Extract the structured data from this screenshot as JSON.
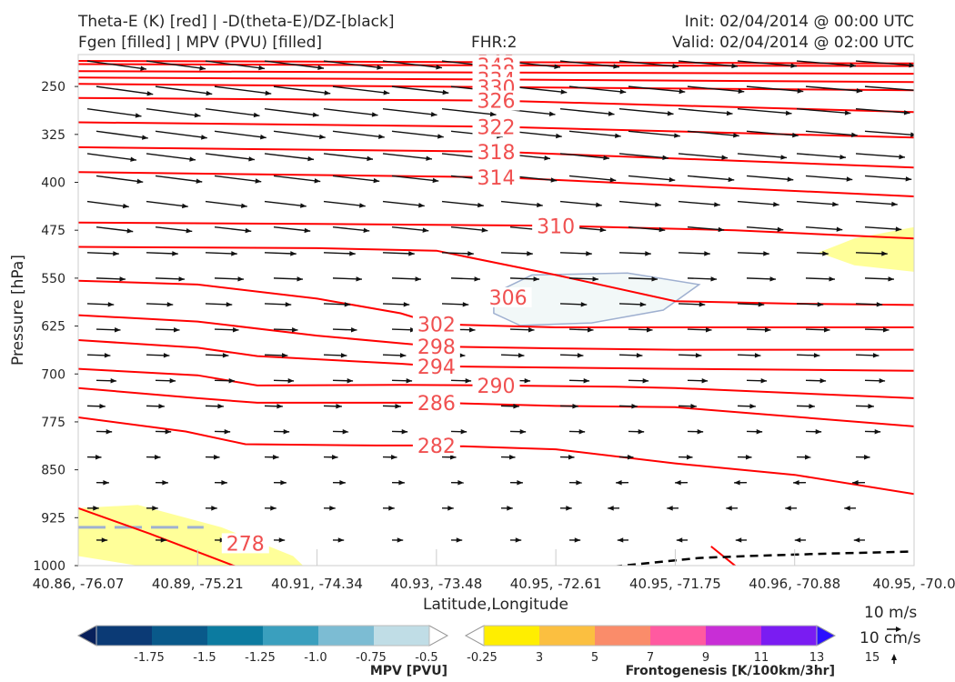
{
  "header": {
    "title_line1": "Theta-E (K) [red] | -D(theta-E)/DZ-[black]",
    "title_line2": "Fgen [filled] | MPV (PVU) [filled]",
    "fhr": "FHR:2",
    "init": "Init: 02/04/2014 @ 00:00 UTC",
    "valid": "Valid: 02/04/2014 @ 02:00 UTC"
  },
  "vector_key": {
    "label_ms": "10 m/s",
    "label_cms": "10 cm/s"
  },
  "colors": {
    "theta_e": "#ff0000",
    "theta_e_label": "#f05050",
    "wind_arrows": "#111111",
    "mpv_contour": "#9fb0d0",
    "fgen_fill": "#ffff99",
    "mpv_fill": "#f2f8f8"
  },
  "chart_data": {
    "type": "cross-section",
    "ylabel": "Pressure [hPa]",
    "xlabel": "Latitude,Longitude",
    "y_ticks": [
      "250",
      "325",
      "400",
      "475",
      "550",
      "625",
      "700",
      "775",
      "850",
      "925",
      "1000"
    ],
    "y_tick_values": [
      250,
      325,
      400,
      475,
      550,
      625,
      700,
      775,
      850,
      925,
      1000
    ],
    "ylim": [
      1000,
      200
    ],
    "x_ticks": [
      "40.86, -76.07",
      "40.89, -75.21",
      "40.91, -74.34",
      "40.93, -73.48",
      "40.95, -72.61",
      "40.95, -71.75",
      "40.96, -70.88",
      "40.95, -70.0"
    ],
    "x_tick_values": [
      0,
      1,
      2,
      3,
      4,
      5,
      6,
      7
    ],
    "xlim": [
      0,
      7
    ],
    "theta_e_contours": [
      {
        "label": "348",
        "points": [
          [
            0,
            210
          ],
          [
            3.5,
            212
          ],
          [
            7,
            214
          ]
        ],
        "label_at": [
          3.5,
          212
        ]
      },
      {
        "label": "342",
        "points": [
          [
            0,
            215
          ],
          [
            3.5,
            217
          ],
          [
            7,
            218
          ]
        ],
        "label_at": [
          3.5,
          217
        ]
      },
      {
        "label": "338",
        "points": [
          [
            0,
            226
          ],
          [
            3.5,
            228
          ],
          [
            7,
            230
          ]
        ],
        "label_at": [
          3.5,
          228
        ]
      },
      {
        "label": "334",
        "points": [
          [
            0,
            236
          ],
          [
            3.5,
            239
          ],
          [
            7,
            243
          ]
        ],
        "label_at": [
          3.5,
          239
        ]
      },
      {
        "label": "330",
        "points": [
          [
            0,
            246
          ],
          [
            3.5,
            251
          ],
          [
            7,
            256
          ]
        ],
        "label_at": [
          3.5,
          251
        ]
      },
      {
        "label": "326",
        "points": [
          [
            0,
            268
          ],
          [
            3.5,
            272
          ],
          [
            7,
            290
          ]
        ],
        "label_at": [
          3.5,
          272
        ]
      },
      {
        "label": "322",
        "points": [
          [
            0,
            306
          ],
          [
            3.5,
            313
          ],
          [
            7,
            330
          ]
        ],
        "label_at": [
          3.5,
          313
        ]
      },
      {
        "label": "318",
        "points": [
          [
            0,
            345
          ],
          [
            3.5,
            352
          ],
          [
            7,
            377
          ]
        ],
        "label_at": [
          3.5,
          352
        ]
      },
      {
        "label": "314",
        "points": [
          [
            0,
            384
          ],
          [
            3.5,
            392
          ],
          [
            7,
            422
          ]
        ],
        "label_at": [
          3.5,
          392
        ]
      },
      {
        "label": "310",
        "points": [
          [
            0,
            463
          ],
          [
            2,
            465
          ],
          [
            4,
            468
          ],
          [
            5.5,
            475
          ],
          [
            7,
            488
          ]
        ],
        "label_at": [
          4,
          468
        ]
      },
      {
        "label": "306",
        "points": [
          [
            0,
            501
          ],
          [
            2,
            503
          ],
          [
            3,
            507
          ],
          [
            4,
            545
          ],
          [
            5,
            586
          ],
          [
            6,
            590
          ],
          [
            7,
            592
          ]
        ],
        "label_at": [
          3.6,
          580
        ]
      },
      {
        "label": "302",
        "points": [
          [
            0,
            554
          ],
          [
            1,
            560
          ],
          [
            2,
            582
          ],
          [
            2.7,
            605
          ],
          [
            3,
            622
          ],
          [
            4,
            627
          ],
          [
            5,
            627
          ],
          [
            7,
            627
          ]
        ],
        "label_at": [
          3,
          622
        ]
      },
      {
        "label": "298",
        "points": [
          [
            0,
            608
          ],
          [
            1,
            618
          ],
          [
            2,
            640
          ],
          [
            2.7,
            652
          ],
          [
            3,
            657
          ],
          [
            4,
            660
          ],
          [
            5,
            662
          ],
          [
            7,
            662
          ]
        ],
        "label_at": [
          3,
          657
        ]
      },
      {
        "label": "294",
        "points": [
          [
            0,
            647
          ],
          [
            1,
            659
          ],
          [
            1.5,
            672
          ],
          [
            2.7,
            684
          ],
          [
            3,
            688
          ],
          [
            4,
            690
          ],
          [
            5,
            692
          ],
          [
            7,
            695
          ]
        ],
        "label_at": [
          3,
          688
        ]
      },
      {
        "label": "290",
        "points": [
          [
            0,
            692
          ],
          [
            1,
            702
          ],
          [
            1.5,
            718
          ],
          [
            2.7,
            717
          ],
          [
            3.5,
            718
          ],
          [
            4.5,
            720
          ],
          [
            5,
            722
          ],
          [
            7,
            738
          ]
        ],
        "label_at": [
          3.5,
          718
        ]
      },
      {
        "label": "286",
        "points": [
          [
            0,
            722
          ],
          [
            1,
            738
          ],
          [
            1.5,
            745
          ],
          [
            2.7,
            745
          ],
          [
            3,
            745
          ],
          [
            4,
            750
          ],
          [
            5,
            752
          ],
          [
            7,
            782
          ]
        ],
        "label_at": [
          3,
          745
        ]
      },
      {
        "label": "282",
        "points": [
          [
            0,
            768
          ],
          [
            0.9,
            790
          ],
          [
            1.4,
            810
          ],
          [
            2.5,
            812
          ],
          [
            3,
            812
          ],
          [
            4,
            818
          ],
          [
            5,
            840
          ],
          [
            6,
            858
          ],
          [
            7,
            888
          ]
        ],
        "label_at": [
          3,
          812
        ]
      },
      {
        "label": "278",
        "points": [
          [
            0,
            910
          ],
          [
            0.6,
            950
          ],
          [
            1.3,
            1000
          ],
          [
            2.3,
            1048
          ]
        ],
        "label_at": [
          1.4,
          965
        ]
      },
      {
        "label": "",
        "points": [
          [
            5.3,
            970
          ],
          [
            5.5,
            1000
          ],
          [
            5.4,
            1030
          ]
        ],
        "label_at": null
      }
    ],
    "dtheta_dz_contour": {
      "style": "dashed",
      "points": [
        [
          3.7,
          1028
        ],
        [
          4.4,
          1003
        ],
        [
          5.2,
          988
        ],
        [
          5.6,
          985
        ],
        [
          6.3,
          981
        ],
        [
          7,
          978
        ]
      ]
    },
    "fgen_filled_regions": [
      {
        "level": "3-5",
        "points": [
          [
            0,
            910
          ],
          [
            0.5,
            905
          ],
          [
            1.2,
            940
          ],
          [
            1.8,
            985
          ],
          [
            2.05,
            1030
          ],
          [
            2.1,
            1050
          ],
          [
            1.5,
            1050
          ],
          [
            0.5,
            1000
          ],
          [
            0,
            985
          ]
        ]
      },
      {
        "level": "3-5",
        "points": [
          [
            7,
            470
          ],
          [
            6.5,
            488
          ],
          [
            6.2,
            510
          ],
          [
            6.5,
            530
          ],
          [
            7,
            540
          ]
        ]
      }
    ],
    "mpv_filled_regions": [
      {
        "level": "-0.25-0",
        "points": [
          [
            3.48,
            574
          ],
          [
            3.8,
            545
          ],
          [
            4.6,
            542
          ],
          [
            5.2,
            560
          ],
          [
            4.9,
            600
          ],
          [
            4.3,
            620
          ],
          [
            3.7,
            624
          ],
          [
            3.48,
            605
          ]
        ]
      }
    ],
    "wind_vectors_note": "rows of arrows pointing east/southeast aloft, weakening toward surface",
    "mpv_colorbar": {
      "title": "MPV [PVU]",
      "tick_labels": [
        "-1.75",
        "-1.5",
        "-1.25",
        "-1.0",
        "-0.75",
        "-0.5",
        "-0.25"
      ],
      "colors": [
        "#08205b",
        "#0b3a75",
        "#09598a",
        "#0c7ba0",
        "#3a9fbe",
        "#7cbcd3",
        "#c0dde6",
        "#ffffff"
      ]
    },
    "fgen_colorbar": {
      "title": "Frontogenesis [K/100km/3hr]",
      "tick_labels": [
        "3",
        "5",
        "7",
        "9",
        "11",
        "13",
        "15"
      ],
      "colors": [
        "#ffffff",
        "#ffee00",
        "#fbbf40",
        "#fa8c6a",
        "#ff5aa0",
        "#c82ed6",
        "#7a1cf2",
        "#2a10ff"
      ]
    }
  }
}
